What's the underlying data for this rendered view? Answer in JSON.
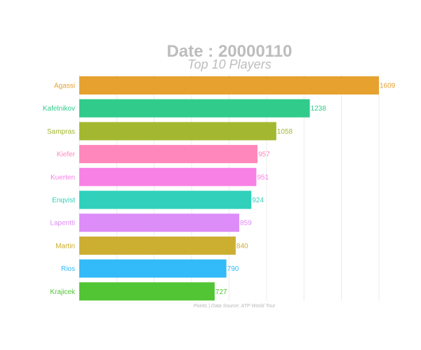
{
  "chart_data": {
    "type": "bar",
    "orientation": "horizontal",
    "title": "Date : 20000110",
    "subtitle": "Top 10 Players",
    "caption": "Points | Data Source: ATP World Tour",
    "categories": [
      "Agassi",
      "Kafelnikov",
      "Sampras",
      "Kiefer",
      "Kuerten",
      "Enqvist",
      "Lapentti",
      "Martin",
      "Rios",
      "Krajicek"
    ],
    "values": [
      1609,
      1238,
      1058,
      957,
      951,
      924,
      859,
      840,
      790,
      727
    ],
    "value_labels": [
      "1609",
      "1238",
      "1058",
      "957",
      "951",
      "924",
      "859",
      "840",
      "790",
      "727"
    ],
    "colors": [
      "#E6A12F",
      "#31CB8C",
      "#A3B830",
      "#FF87BC",
      "#F881E5",
      "#31D0BB",
      "#DD8DF7",
      "#CCAE31",
      "#33BAF8",
      "#51C534"
    ],
    "xlim": [
      0,
      1609
    ],
    "grid": true,
    "legend": "none"
  }
}
